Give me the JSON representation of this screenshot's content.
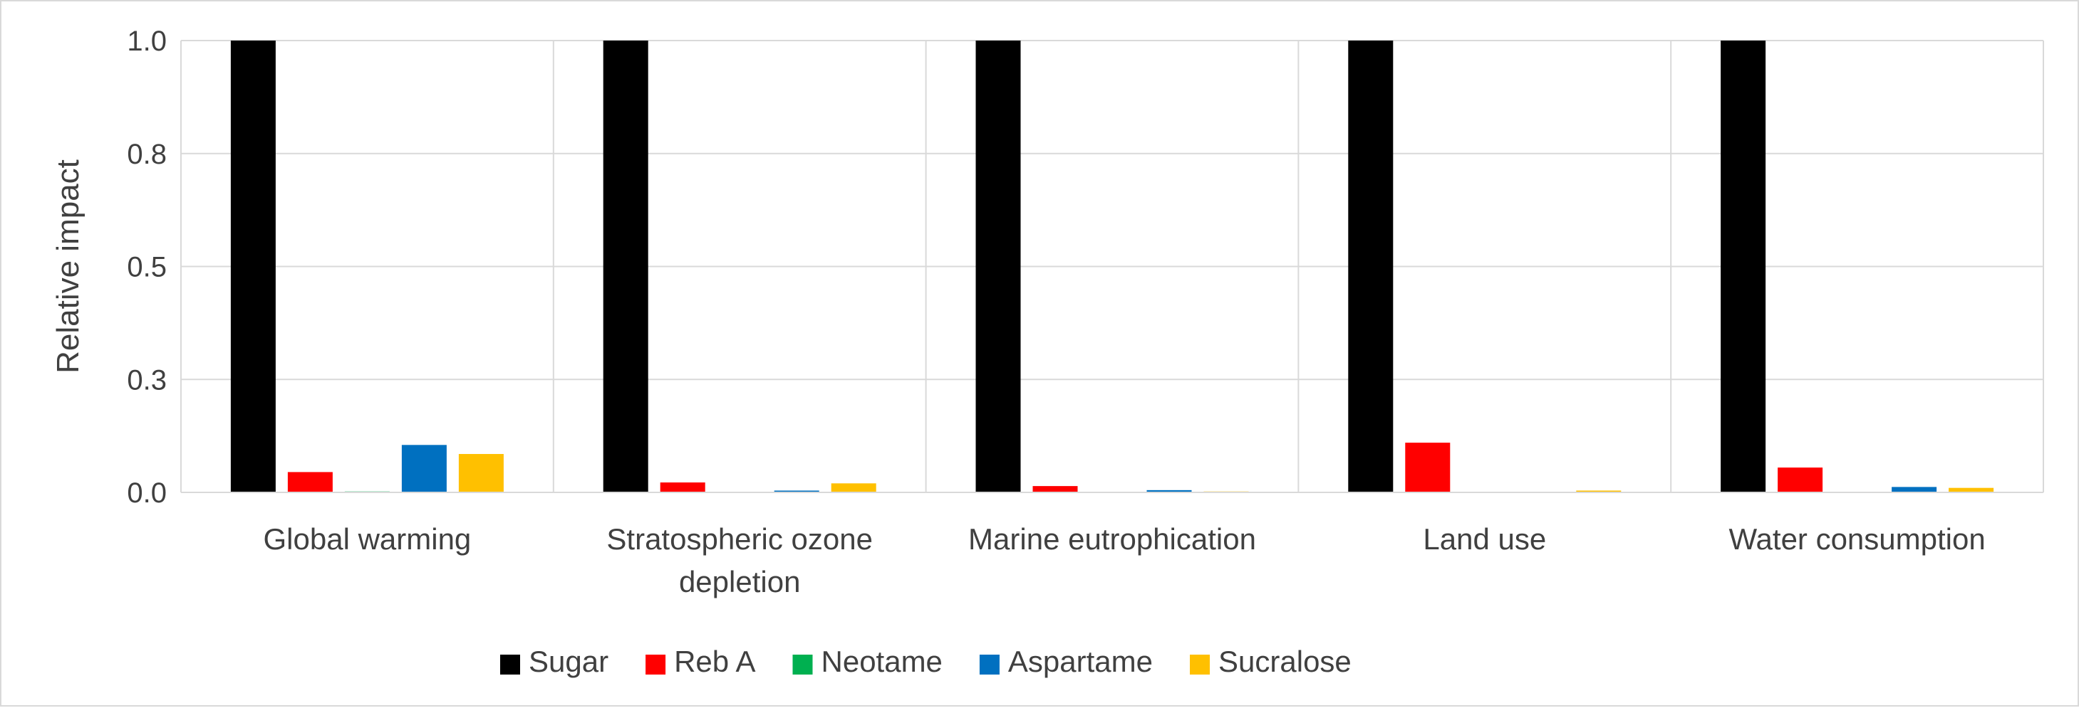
{
  "chart_data": {
    "type": "bar",
    "title": "",
    "xlabel": "",
    "ylabel": "Relative impact",
    "ylim": [
      0,
      1.0
    ],
    "yticks": [
      0.0,
      0.25,
      0.5,
      0.75,
      1.0
    ],
    "ytick_labels": [
      "0.0",
      "0.3",
      "0.5",
      "0.8",
      "1.0"
    ],
    "grid": true,
    "legend_position": "bottom",
    "categories": [
      [
        "Global warming"
      ],
      [
        "Stratospheric ozone",
        "depletion"
      ],
      [
        "Marine eutrophication"
      ],
      [
        "Land use"
      ],
      [
        "Water consumption"
      ]
    ],
    "series": [
      {
        "name": "Sugar",
        "color": "#000000",
        "values": [
          1.0,
          1.0,
          1.0,
          1.0,
          1.0
        ]
      },
      {
        "name": "Reb A",
        "color": "#ff0000",
        "values": [
          0.045,
          0.022,
          0.014,
          0.11,
          0.055
        ]
      },
      {
        "name": "Neotame",
        "color": "#00b050",
        "values": [
          0.002,
          0.0,
          0.0,
          0.0,
          0.0
        ]
      },
      {
        "name": "Aspartame",
        "color": "#0070c0",
        "values": [
          0.105,
          0.004,
          0.005,
          0.0,
          0.012
        ]
      },
      {
        "name": "Sucralose",
        "color": "#ffc000",
        "values": [
          0.085,
          0.02,
          0.002,
          0.004,
          0.01
        ]
      }
    ]
  }
}
